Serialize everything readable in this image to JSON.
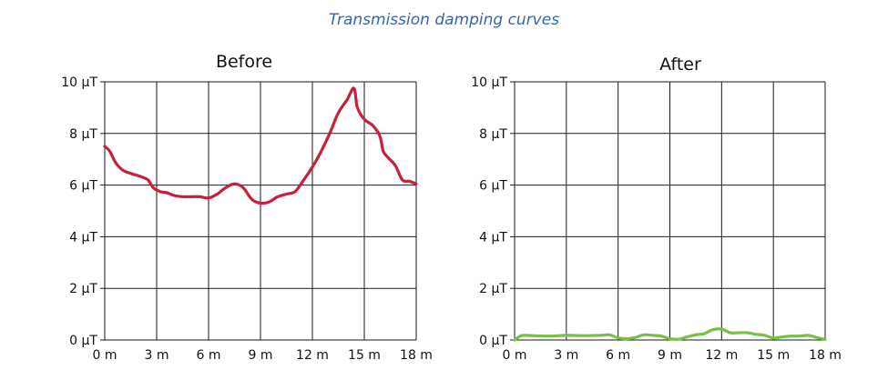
{
  "title": "Transmission damping curves",
  "chart_data": [
    {
      "type": "line",
      "title": "Before",
      "xlabel": "",
      "ylabel": "",
      "xlim": [
        0,
        18
      ],
      "ylim": [
        0,
        10
      ],
      "x_ticks": [
        "0 m",
        "3 m",
        "6 m",
        "9 m",
        "12 m",
        "15 m",
        "18 m"
      ],
      "y_ticks": [
        "0 µT",
        "2 µT",
        "4 µT",
        "6 µT",
        "8 µT",
        "10 µT"
      ],
      "grid": true,
      "series": [
        {
          "color": "#c8203c",
          "x": [
            0,
            0.3,
            0.6,
            1.0,
            1.5,
            2.0,
            2.5,
            2.8,
            3.2,
            3.6,
            4.0,
            4.5,
            5.0,
            5.5,
            6.0,
            6.5,
            7.0,
            7.5,
            8.0,
            8.5,
            9.0,
            9.5,
            10.0,
            10.5,
            11.0,
            11.5,
            12.0,
            12.5,
            13.0,
            13.5,
            14.0,
            14.4,
            14.6,
            15.0,
            15.5,
            15.9,
            16.1,
            16.4,
            16.8,
            17.2,
            17.6,
            18.0
          ],
          "y": [
            7.5,
            7.3,
            6.9,
            6.6,
            6.45,
            6.35,
            6.2,
            5.9,
            5.75,
            5.7,
            5.6,
            5.55,
            5.55,
            5.55,
            5.5,
            5.65,
            5.9,
            6.05,
            5.9,
            5.45,
            5.3,
            5.35,
            5.55,
            5.65,
            5.75,
            6.2,
            6.7,
            7.3,
            8.0,
            8.8,
            9.3,
            9.75,
            9.0,
            8.55,
            8.3,
            7.9,
            7.3,
            7.05,
            6.75,
            6.2,
            6.15,
            6.05
          ]
        }
      ]
    },
    {
      "type": "line",
      "title": "After",
      "xlabel": "",
      "ylabel": "",
      "xlim": [
        0,
        18
      ],
      "ylim": [
        0,
        10
      ],
      "x_ticks": [
        "0 m",
        "3 m",
        "6 m",
        "9 m",
        "12 m",
        "15 m",
        "18 m"
      ],
      "y_ticks": [
        "0 µT",
        "2 µT",
        "4 µT",
        "6 µT",
        "8 µT",
        "10 µT"
      ],
      "grid": true,
      "series": [
        {
          "color": "#77c043",
          "x": [
            0,
            0.4,
            1.0,
            2.0,
            3.0,
            4.0,
            5.0,
            5.5,
            6.0,
            6.5,
            7.0,
            7.5,
            8.0,
            8.5,
            9.0,
            9.5,
            10.0,
            10.5,
            11.0,
            11.5,
            12.0,
            12.5,
            13.0,
            13.5,
            14.0,
            14.5,
            15.0,
            15.5,
            16.0,
            16.5,
            17.0,
            17.5,
            18.0
          ],
          "y": [
            0.0,
            0.17,
            0.17,
            0.15,
            0.18,
            0.17,
            0.18,
            0.2,
            0.08,
            0.05,
            0.1,
            0.2,
            0.18,
            0.15,
            0.05,
            0.03,
            0.12,
            0.2,
            0.25,
            0.4,
            0.42,
            0.28,
            0.28,
            0.28,
            0.22,
            0.18,
            0.08,
            0.12,
            0.15,
            0.15,
            0.18,
            0.1,
            0.02
          ]
        }
      ]
    }
  ]
}
